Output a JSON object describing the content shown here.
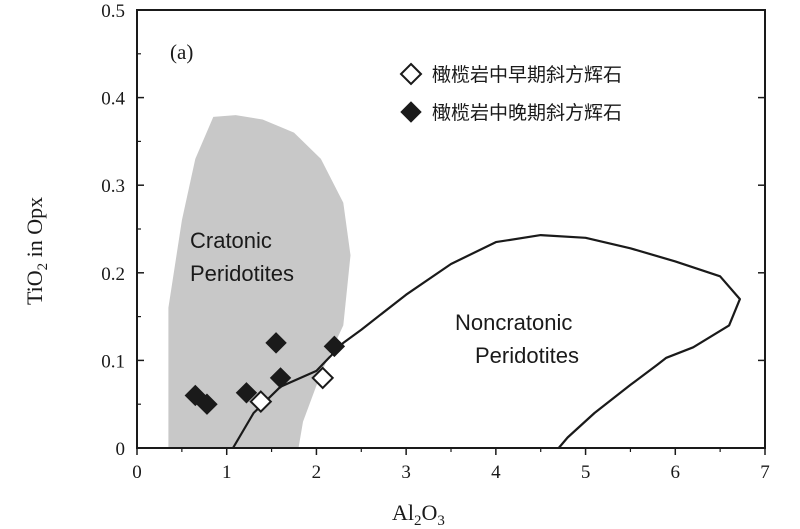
{
  "chart_data": {
    "type": "scatter",
    "panel_label": "(a)",
    "xlabel": {
      "base": "Al",
      "sub1": "2",
      "mid": "O",
      "sub2": "3"
    },
    "ylabel": {
      "base": "TiO",
      "sub": "2",
      "rest": " in Opx"
    },
    "xlim": [
      0,
      7
    ],
    "ylim": [
      0,
      0.5
    ],
    "x_ticks": [
      "0",
      "1",
      "2",
      "3",
      "4",
      "5",
      "6",
      "7"
    ],
    "y_ticks": [
      "0",
      "0.1",
      "0.2",
      "0.3",
      "0.4",
      "0.5"
    ],
    "x_tick_values": [
      0,
      1,
      2,
      3,
      4,
      5,
      6,
      7
    ],
    "y_tick_values": [
      0,
      0.1,
      0.2,
      0.3,
      0.4,
      0.5
    ],
    "legend_position": "top-right",
    "series": [
      {
        "name": "橄榄岩中早期斜方辉石",
        "marker": "open-diamond",
        "points": [
          [
            1.38,
            0.053
          ],
          [
            2.07,
            0.08
          ]
        ]
      },
      {
        "name": "橄榄岩中晚期斜方辉石",
        "marker": "filled-diamond",
        "points": [
          [
            0.65,
            0.06
          ],
          [
            0.78,
            0.05
          ],
          [
            1.22,
            0.063
          ],
          [
            1.55,
            0.12
          ],
          [
            1.6,
            0.08
          ],
          [
            2.2,
            0.116
          ]
        ]
      }
    ],
    "fields": [
      {
        "label_lines": [
          "Cratonic",
          "Peridotites"
        ],
        "fill": "#c8c8c8",
        "outline": [
          [
            0.35,
            0
          ],
          [
            0.35,
            0.16
          ],
          [
            0.5,
            0.26
          ],
          [
            0.65,
            0.33
          ],
          [
            0.85,
            0.378
          ],
          [
            1.1,
            0.38
          ],
          [
            1.4,
            0.375
          ],
          [
            1.75,
            0.36
          ],
          [
            2.05,
            0.33
          ],
          [
            2.3,
            0.28
          ],
          [
            2.38,
            0.22
          ],
          [
            2.3,
            0.14
          ],
          [
            2.05,
            0.085
          ],
          [
            1.85,
            0.03
          ],
          [
            1.8,
            0
          ]
        ]
      },
      {
        "label_lines": [
          "Noncratonic",
          "Peridotites"
        ],
        "outline": [
          [
            1.07,
            0
          ],
          [
            1.3,
            0.04
          ],
          [
            1.6,
            0.07
          ],
          [
            2.0,
            0.088
          ],
          [
            2.3,
            0.12
          ],
          [
            2.5,
            0.135
          ],
          [
            3.0,
            0.175
          ],
          [
            3.5,
            0.21
          ],
          [
            4.0,
            0.235
          ],
          [
            4.5,
            0.243
          ],
          [
            5.0,
            0.24
          ],
          [
            5.5,
            0.228
          ],
          [
            6.0,
            0.213
          ],
          [
            6.5,
            0.196
          ],
          [
            6.72,
            0.17
          ],
          [
            6.6,
            0.14
          ],
          [
            6.2,
            0.115
          ],
          [
            5.9,
            0.103
          ],
          [
            5.8,
            0.095
          ],
          [
            5.5,
            0.072
          ],
          [
            5.1,
            0.04
          ],
          [
            4.8,
            0.012
          ],
          [
            4.7,
            0
          ]
        ]
      }
    ]
  }
}
